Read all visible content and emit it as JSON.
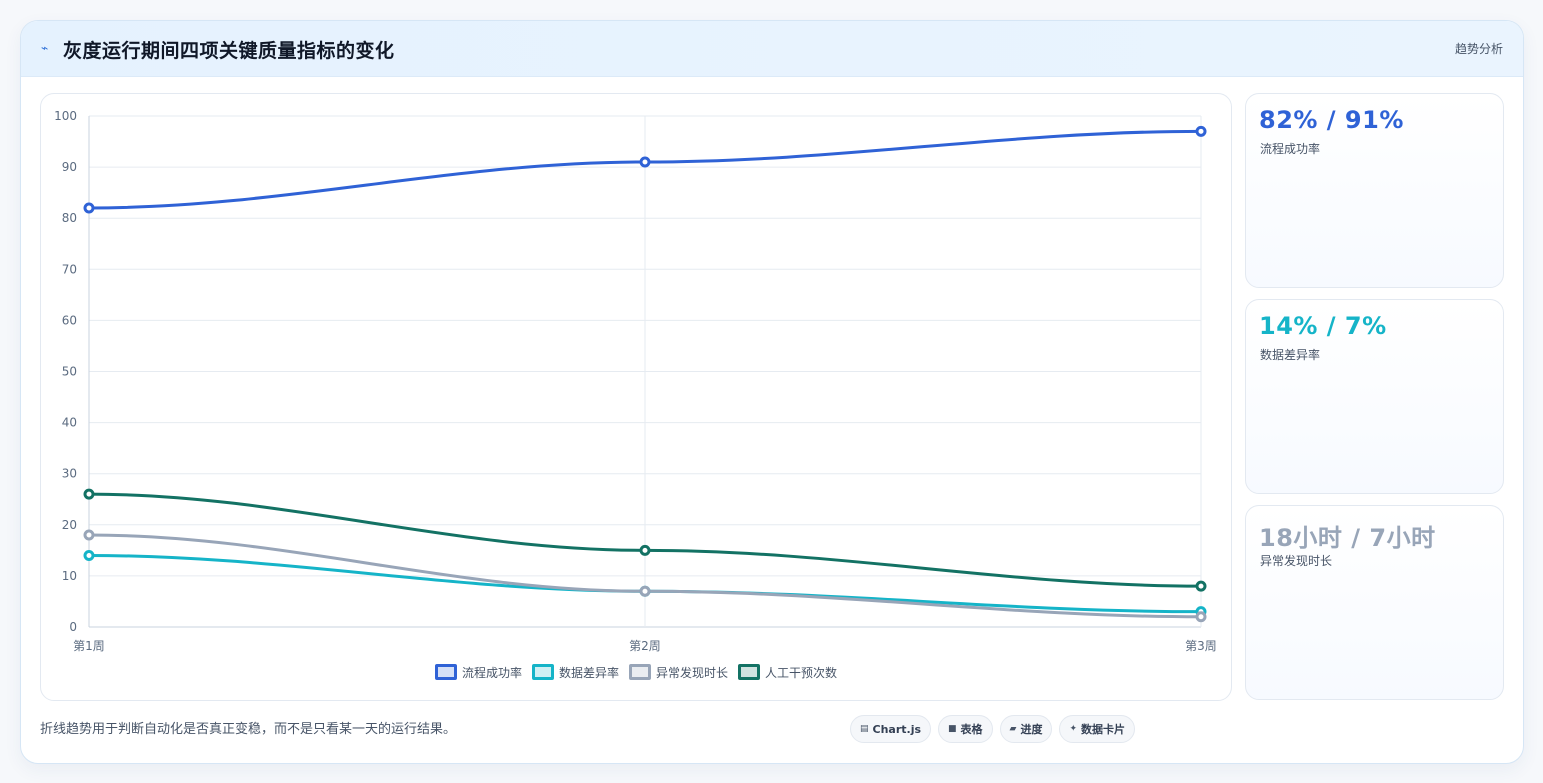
{
  "header": {
    "icon": "chart-line-icon",
    "title": "灰度运行期间四项关键质量指标的变化",
    "tag": "趋势分析"
  },
  "chart_data": {
    "type": "line",
    "categories": [
      "第1周",
      "第2周",
      "第3周"
    ],
    "ylim": [
      0,
      100
    ],
    "yticks": [
      0,
      10,
      20,
      30,
      40,
      50,
      60,
      70,
      80,
      90,
      100
    ],
    "grid": true,
    "legend_position": "bottom",
    "series": [
      {
        "name": "流程成功率",
        "values": [
          82,
          91,
          97
        ],
        "color": "#2f62d6"
      },
      {
        "name": "数据差异率",
        "values": [
          14,
          7,
          3
        ],
        "color": "#15b4c8"
      },
      {
        "name": "异常发现时长",
        "values": [
          18,
          7,
          2
        ],
        "color": "#98a5b8"
      },
      {
        "name": "人工干预次数",
        "values": [
          26,
          15,
          8
        ],
        "color": "#137264"
      }
    ]
  },
  "stats": [
    {
      "value": "82% / 91%",
      "label": "流程成功率",
      "color": "#2f62d6"
    },
    {
      "value": "14% / 7%",
      "label": "数据差异率",
      "color": "#15b4c8"
    },
    {
      "value": "18小时 / 7小时",
      "label": "异常发现时长",
      "color": "#98a5b8"
    }
  ],
  "footnote": "折线趋势用于判断自动化是否真正变稳，而不是只看某一天的运行结果。",
  "chips": [
    {
      "icon": "chart-icon",
      "glyph": "▤",
      "label": "Chart.js"
    },
    {
      "icon": "table-icon",
      "glyph": "■",
      "label": "表格"
    },
    {
      "icon": "progress-icon",
      "glyph": "▰",
      "label": "进度"
    },
    {
      "icon": "sparkle-icon",
      "glyph": "✦",
      "label": "数据卡片"
    }
  ]
}
